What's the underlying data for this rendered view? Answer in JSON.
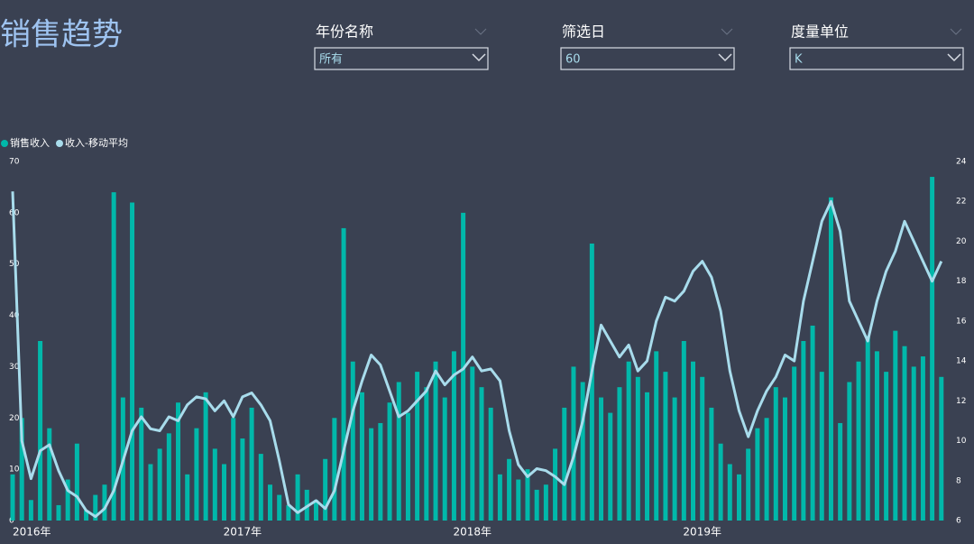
{
  "page": {
    "title": "销售趋势",
    "filters": [
      {
        "label": "年份名称",
        "value": "所有"
      },
      {
        "label": "筛选日",
        "value": "60"
      },
      {
        "label": "度量单位",
        "value": "K"
      }
    ]
  },
  "chart_data": {
    "type": "combo",
    "x": [
      2016.0,
      2016.04,
      2016.08,
      2016.12,
      2016.16,
      2016.2,
      2016.24,
      2016.28,
      2016.32,
      2016.36,
      2016.4,
      2016.44,
      2016.48,
      2016.52,
      2016.56,
      2016.6,
      2016.64,
      2016.68,
      2016.72,
      2016.76,
      2016.8,
      2016.84,
      2016.88,
      2016.92,
      2016.96,
      2017.0,
      2017.04,
      2017.08,
      2017.12,
      2017.16,
      2017.2,
      2017.24,
      2017.28,
      2017.32,
      2017.36,
      2017.4,
      2017.44,
      2017.48,
      2017.52,
      2017.56,
      2017.6,
      2017.64,
      2017.68,
      2017.72,
      2017.76,
      2017.8,
      2017.84,
      2017.88,
      2017.92,
      2017.96,
      2018.0,
      2018.04,
      2018.08,
      2018.12,
      2018.16,
      2018.2,
      2018.24,
      2018.28,
      2018.32,
      2018.36,
      2018.4,
      2018.44,
      2018.48,
      2018.52,
      2018.56,
      2018.6,
      2018.64,
      2018.68,
      2018.72,
      2018.76,
      2018.8,
      2018.84,
      2018.88,
      2018.92,
      2018.96,
      2019.0,
      2019.04,
      2019.08,
      2019.12,
      2019.16,
      2019.2,
      2019.24,
      2019.28,
      2019.32,
      2019.36,
      2019.4,
      2019.44,
      2019.48,
      2019.52,
      2019.56,
      2019.6,
      2019.64,
      2019.68,
      2019.72,
      2019.76,
      2019.8,
      2019.84,
      2019.88,
      2019.92,
      2019.96,
      2020.0,
      2020.04
    ],
    "series": [
      {
        "name": "销售收入",
        "type": "bar",
        "color": "#01b8aa",
        "values": [
          9,
          20,
          4,
          35,
          18,
          3,
          8,
          15,
          2,
          5,
          7,
          64,
          24,
          62,
          22,
          11,
          14,
          17,
          23,
          9,
          18,
          25,
          14,
          11,
          20,
          16,
          22,
          13,
          7,
          5,
          3,
          9,
          6,
          4,
          12,
          20,
          57,
          31,
          25,
          18,
          19,
          23,
          27,
          21,
          29,
          26,
          31,
          24,
          33,
          60,
          30,
          26,
          22,
          9,
          12,
          8,
          10,
          6,
          7,
          14,
          22,
          30,
          27,
          54,
          24,
          21,
          26,
          31,
          28,
          25,
          33,
          29,
          24,
          35,
          31,
          28,
          22,
          15,
          11,
          9,
          14,
          18,
          20,
          26,
          24,
          30,
          35,
          38,
          29,
          63,
          19,
          27,
          31,
          36,
          33,
          29,
          37,
          34,
          30,
          32,
          67,
          28
        ]
      },
      {
        "name": "收入-移动平均",
        "type": "line",
        "axis": "y2",
        "color": "#a8dcec",
        "values": [
          22.5,
          10,
          8.1,
          9.5,
          9.8,
          8.5,
          7.5,
          7.2,
          6.5,
          6.2,
          6.6,
          7.5,
          9,
          10.5,
          11.2,
          10.6,
          10.5,
          11.2,
          11,
          11.8,
          12.2,
          12.1,
          11.5,
          12,
          11.2,
          12.2,
          12.4,
          11.8,
          11,
          9,
          6.8,
          6.4,
          6.7,
          7,
          6.6,
          7.5,
          9.5,
          11.5,
          13,
          14.3,
          13.8,
          12.5,
          11.2,
          11.5,
          12,
          12.5,
          13.5,
          12.8,
          13.3,
          13.6,
          14.2,
          13.5,
          13.6,
          13,
          10.5,
          8.8,
          8.2,
          8.6,
          8.5,
          8.2,
          7.8,
          9.2,
          11,
          13.5,
          15.8,
          15,
          14.2,
          14.8,
          13.5,
          14,
          16,
          17.2,
          17,
          17.5,
          18.5,
          19,
          18.2,
          16.5,
          13.5,
          11.5,
          10.2,
          11.5,
          12.5,
          13.2,
          14.3,
          14,
          17,
          19,
          21,
          22,
          20.5,
          17,
          16,
          15,
          17,
          18.5,
          19.5,
          21,
          20,
          19,
          18,
          19
        ]
      }
    ],
    "xlim": [
      2016,
      2020.08
    ],
    "xticks": [
      {
        "value": 2016,
        "label": "2016年"
      },
      {
        "value": 2017,
        "label": "2017年"
      },
      {
        "value": 2018,
        "label": "2018年"
      },
      {
        "value": 2019,
        "label": "2019年"
      }
    ],
    "ylim": [
      0,
      70
    ],
    "yticks": [
      0,
      10,
      20,
      30,
      40,
      50,
      60,
      70
    ],
    "y2lim": [
      6,
      24
    ],
    "y2ticks": [
      6,
      8,
      10,
      12,
      14,
      16,
      18,
      20,
      22,
      24
    ],
    "legend": "top-left"
  }
}
